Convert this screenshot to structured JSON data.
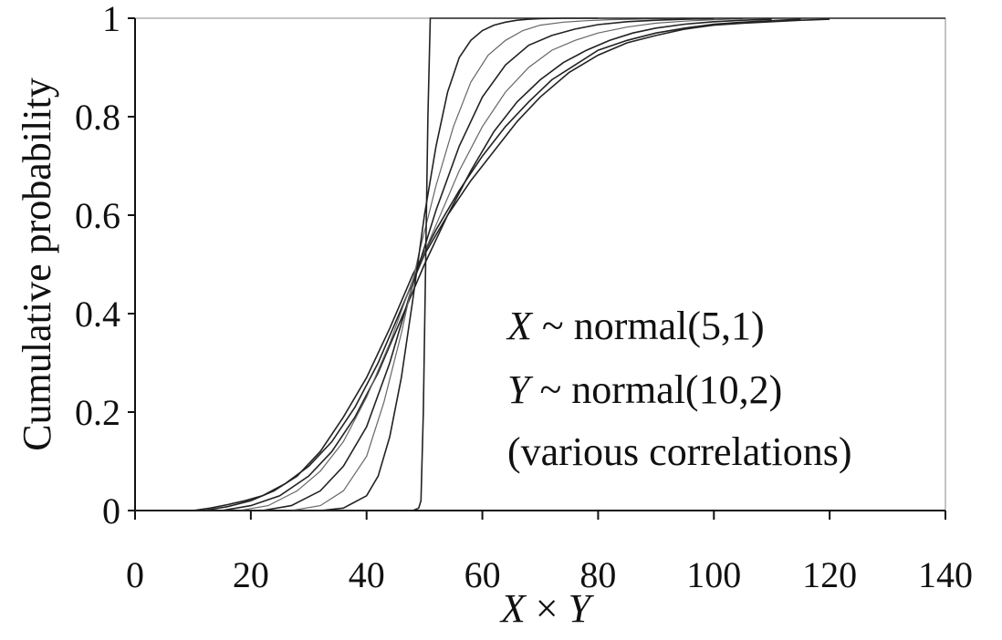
{
  "chart_data": {
    "type": "line",
    "title": "",
    "xlabel_pre": "X",
    "xlabel_op": " × ",
    "xlabel_post": "Y",
    "ylabel": "Cumulative probability",
    "xlim": [
      0,
      140
    ],
    "ylim": [
      0,
      1
    ],
    "xticks": [
      0,
      20,
      40,
      60,
      80,
      100,
      120,
      140
    ],
    "yticks": [
      0,
      0.2,
      0.4,
      0.6,
      0.8,
      1
    ],
    "grid": false,
    "annotation": {
      "line1_var": "X",
      "line1_text": " ~ normal(5,1)",
      "line2_var": "Y",
      "line2_text": " ~ normal(10,2)",
      "line3_text": "(various correlations)"
    },
    "series": [
      {
        "style": "dark",
        "x": [
          10,
          13,
          16,
          19,
          22,
          26,
          30,
          34,
          38,
          42,
          46,
          50,
          54,
          58,
          62,
          66,
          70,
          75,
          80,
          85,
          90,
          95,
          100,
          105,
          110,
          115,
          120
        ],
        "y": [
          0.0,
          0.005,
          0.012,
          0.02,
          0.03,
          0.055,
          0.09,
          0.14,
          0.21,
          0.3,
          0.41,
          0.52,
          0.6,
          0.67,
          0.73,
          0.79,
          0.84,
          0.89,
          0.925,
          0.95,
          0.965,
          0.978,
          0.986,
          0.99,
          0.993,
          0.996,
          0.998
        ]
      },
      {
        "style": "dark",
        "x": [
          12,
          16,
          20,
          24,
          28,
          32,
          36,
          40,
          44,
          48,
          52,
          56,
          60,
          64,
          68,
          72,
          76,
          80,
          85,
          90,
          95,
          100,
          105,
          110,
          115
        ],
        "y": [
          0.0,
          0.008,
          0.02,
          0.04,
          0.07,
          0.12,
          0.19,
          0.27,
          0.37,
          0.48,
          0.57,
          0.65,
          0.72,
          0.78,
          0.83,
          0.875,
          0.905,
          0.935,
          0.955,
          0.97,
          0.98,
          0.988,
          0.992,
          0.995,
          0.998
        ]
      },
      {
        "style": "dark",
        "x": [
          15,
          20,
          25,
          30,
          34,
          38,
          42,
          46,
          50,
          54,
          58,
          62,
          66,
          70,
          74,
          78,
          82,
          86,
          90,
          95,
          100,
          105,
          110
        ],
        "y": [
          0.0,
          0.01,
          0.03,
          0.07,
          0.12,
          0.19,
          0.28,
          0.39,
          0.5,
          0.6,
          0.69,
          0.77,
          0.83,
          0.875,
          0.91,
          0.935,
          0.955,
          0.97,
          0.98,
          0.988,
          0.993,
          0.996,
          0.998
        ]
      },
      {
        "style": "light",
        "x": [
          18,
          23,
          28,
          32,
          36,
          40,
          44,
          48,
          52,
          56,
          60,
          64,
          68,
          72,
          76,
          80,
          85,
          90,
          95,
          100,
          105
        ],
        "y": [
          0.0,
          0.01,
          0.04,
          0.08,
          0.14,
          0.23,
          0.34,
          0.47,
          0.58,
          0.69,
          0.78,
          0.85,
          0.9,
          0.935,
          0.955,
          0.97,
          0.982,
          0.99,
          0.994,
          0.997,
          0.999
        ]
      },
      {
        "style": "dark",
        "x": [
          22,
          27,
          32,
          36,
          40,
          44,
          48,
          52,
          56,
          60,
          64,
          68,
          72,
          76,
          80,
          85,
          90,
          95,
          100
        ],
        "y": [
          0.0,
          0.01,
          0.04,
          0.09,
          0.17,
          0.3,
          0.46,
          0.61,
          0.74,
          0.84,
          0.905,
          0.945,
          0.965,
          0.978,
          0.987,
          0.993,
          0.996,
          0.998,
          0.999
        ]
      },
      {
        "style": "light",
        "x": [
          27,
          32,
          36,
          40,
          43,
          46,
          49,
          52,
          55,
          58,
          61,
          64,
          67,
          70,
          74,
          78,
          82,
          86,
          90,
          95
        ],
        "y": [
          0.0,
          0.01,
          0.04,
          0.11,
          0.22,
          0.36,
          0.52,
          0.66,
          0.78,
          0.87,
          0.925,
          0.955,
          0.975,
          0.986,
          0.992,
          0.995,
          0.997,
          0.998,
          0.999,
          1.0
        ]
      },
      {
        "style": "dark",
        "x": [
          32,
          36,
          40,
          42,
          44,
          46,
          48,
          50,
          52,
          54,
          56,
          58,
          60,
          62,
          64,
          66,
          68,
          70,
          74,
          80
        ],
        "y": [
          0.0,
          0.005,
          0.03,
          0.07,
          0.15,
          0.27,
          0.43,
          0.6,
          0.74,
          0.85,
          0.92,
          0.955,
          0.975,
          0.986,
          0.992,
          0.996,
          0.998,
          0.999,
          1.0,
          1.0
        ]
      },
      {
        "style": "dark",
        "x": [
          0,
          48,
          49,
          49.4,
          49.8,
          50.2,
          50.6,
          51,
          140
        ],
        "y": [
          0.0,
          0.0,
          0.005,
          0.02,
          0.2,
          0.5,
          0.8,
          1.0,
          1.0
        ]
      }
    ]
  }
}
